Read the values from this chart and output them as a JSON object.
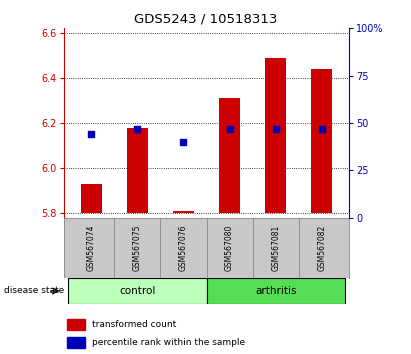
{
  "title": "GDS5243 / 10518313",
  "samples": [
    "GSM567074",
    "GSM567075",
    "GSM567076",
    "GSM567080",
    "GSM567081",
    "GSM567082"
  ],
  "bar_bottom": 5.8,
  "bar_top": [
    5.93,
    6.18,
    5.81,
    6.31,
    6.49,
    6.44
  ],
  "percentile_rank": [
    44,
    47,
    40,
    47,
    47,
    47
  ],
  "ylim_left": [
    5.78,
    6.62
  ],
  "ylim_right": [
    0,
    100
  ],
  "yticks_left": [
    5.8,
    6.0,
    6.2,
    6.4,
    6.6
  ],
  "yticks_right": [
    0,
    25,
    50,
    75,
    100
  ],
  "ytick_labels_right": [
    "0",
    "25",
    "50",
    "75",
    "100%"
  ],
  "left_axis_color": "#cc0000",
  "right_axis_color": "#0000bb",
  "bar_color": "#cc0000",
  "marker_color": "#0000bb",
  "control_color": "#bbffbb",
  "arthritis_color": "#55dd55",
  "legend_red_label": "transformed count",
  "legend_blue_label": "percentile rank within the sample",
  "title_fontsize": 9.5
}
